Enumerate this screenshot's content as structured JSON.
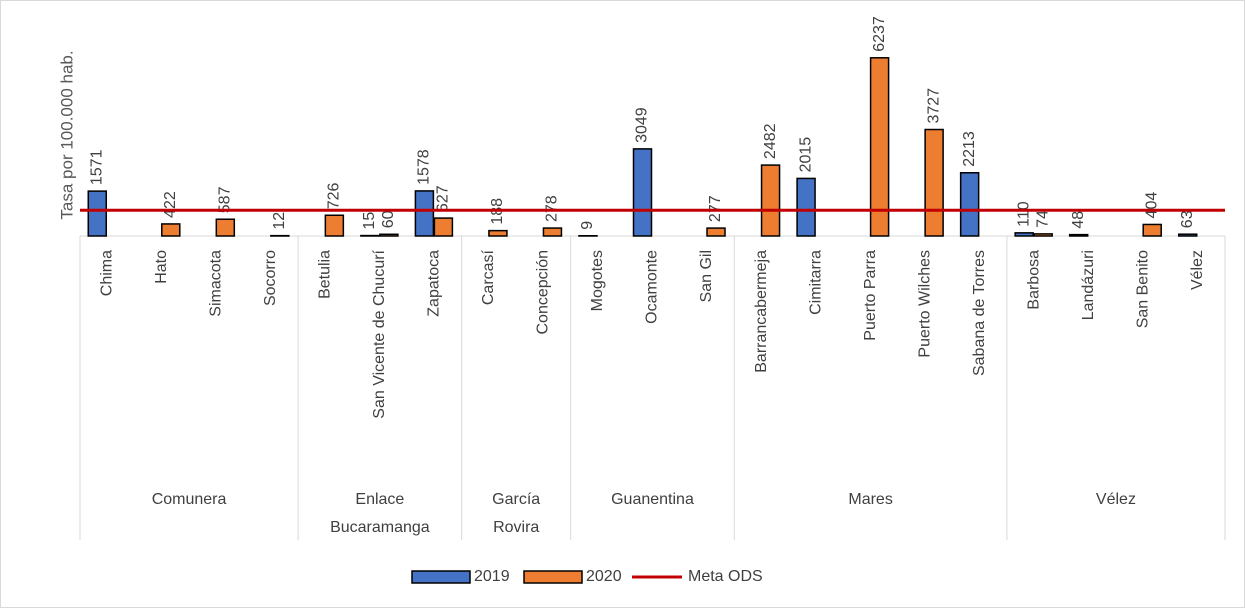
{
  "chart_data": {
    "type": "bar",
    "y_label": "Tasa por 100.000 hab.",
    "categories": [
      "Chima",
      "Hato",
      "Simacota",
      "Socorro",
      "Betulia",
      "San Vicente de Chucurí",
      "Zapatoca",
      "Carcasí",
      "Concepción",
      "Mogotes",
      "Ocamonte",
      "San Gil",
      "Barrancabermeja",
      "Cimitarra",
      "Puerto Parra",
      "Puerto Wilches",
      "Sabana de Torres",
      "Barbosa",
      "Landázuri",
      "San Benito",
      "Vélez"
    ],
    "groups": [
      {
        "name": "Comunera",
        "count": 4
      },
      {
        "name": "Enlace Bucaramanga",
        "count": 3
      },
      {
        "name": "García Rovira",
        "count": 2
      },
      {
        "name": "Guanentina",
        "count": 3
      },
      {
        "name": "Mares",
        "count": 5
      },
      {
        "name": "Vélez",
        "count": 4
      }
    ],
    "series": [
      {
        "name": "2019",
        "color": "#4472c4",
        "values": [
          1571,
          null,
          null,
          null,
          null,
          15,
          1578,
          null,
          null,
          9,
          3049,
          null,
          null,
          2015,
          null,
          null,
          2213,
          110,
          48,
          null,
          63
        ]
      },
      {
        "name": "2020",
        "color": "#ed7d31",
        "values": [
          null,
          422,
          587,
          12,
          726,
          60,
          627,
          188,
          278,
          null,
          null,
          277,
          2482,
          null,
          6237,
          3727,
          null,
          74,
          null,
          404,
          null
        ]
      }
    ],
    "target": {
      "name": "Meta ODS",
      "value": 900,
      "color": "#c00000"
    },
    "ylim": [
      0,
      7000
    ]
  }
}
